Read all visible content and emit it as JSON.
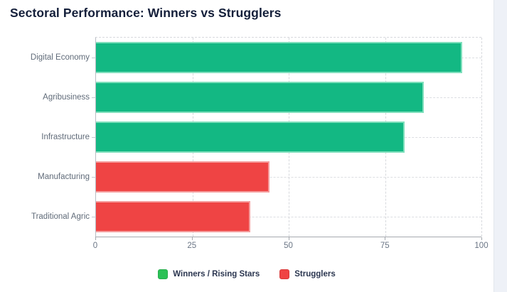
{
  "title": "Sectoral Performance: Winners vs Strugglers",
  "colors": {
    "title_text": "#141f3a",
    "category_label": "#606b79",
    "tick_label": "#6a7585",
    "grid": "#d7d9dd",
    "axis": "#a6aab0",
    "legend_text": "#2b3650",
    "side_panel": "#eef1f7"
  },
  "chart_data": {
    "type": "bar",
    "orientation": "horizontal",
    "title": "Sectoral Performance: Winners vs Strugglers",
    "categories": [
      "Digital Economy",
      "Agribusiness",
      "Infrastructure",
      "Manufacturing",
      "Traditional Agric"
    ],
    "series": [
      {
        "name": "Winners / Rising Stars",
        "fill": "#13b883",
        "border": "#7fdfbc",
        "legend_fill": "#2bc156",
        "legend_border": "#27ad4d",
        "values": [
          95,
          85,
          80,
          null,
          null
        ]
      },
      {
        "name": "Strugglers",
        "fill": "#ef4444",
        "border": "#f59d9d",
        "legend_fill": "#ef4444",
        "legend_border": "#d93a3a",
        "values": [
          null,
          null,
          null,
          45,
          40
        ]
      }
    ],
    "bars": [
      {
        "category": "Digital Economy",
        "value": 95,
        "series": "Winners / Rising Stars"
      },
      {
        "category": "Agribusiness",
        "value": 85,
        "series": "Winners / Rising Stars"
      },
      {
        "category": "Infrastructure",
        "value": 80,
        "series": "Winners / Rising Stars"
      },
      {
        "category": "Manufacturing",
        "value": 45,
        "series": "Strugglers"
      },
      {
        "category": "Traditional Agric",
        "value": 40,
        "series": "Strugglers"
      }
    ],
    "x_ticks": [
      0,
      25,
      50,
      75,
      100
    ],
    "x_tick_labels": [
      "0",
      "25",
      "50",
      "75",
      "100"
    ],
    "xlim": [
      0,
      100
    ],
    "grid": "dashed",
    "legend_position": "bottom"
  }
}
